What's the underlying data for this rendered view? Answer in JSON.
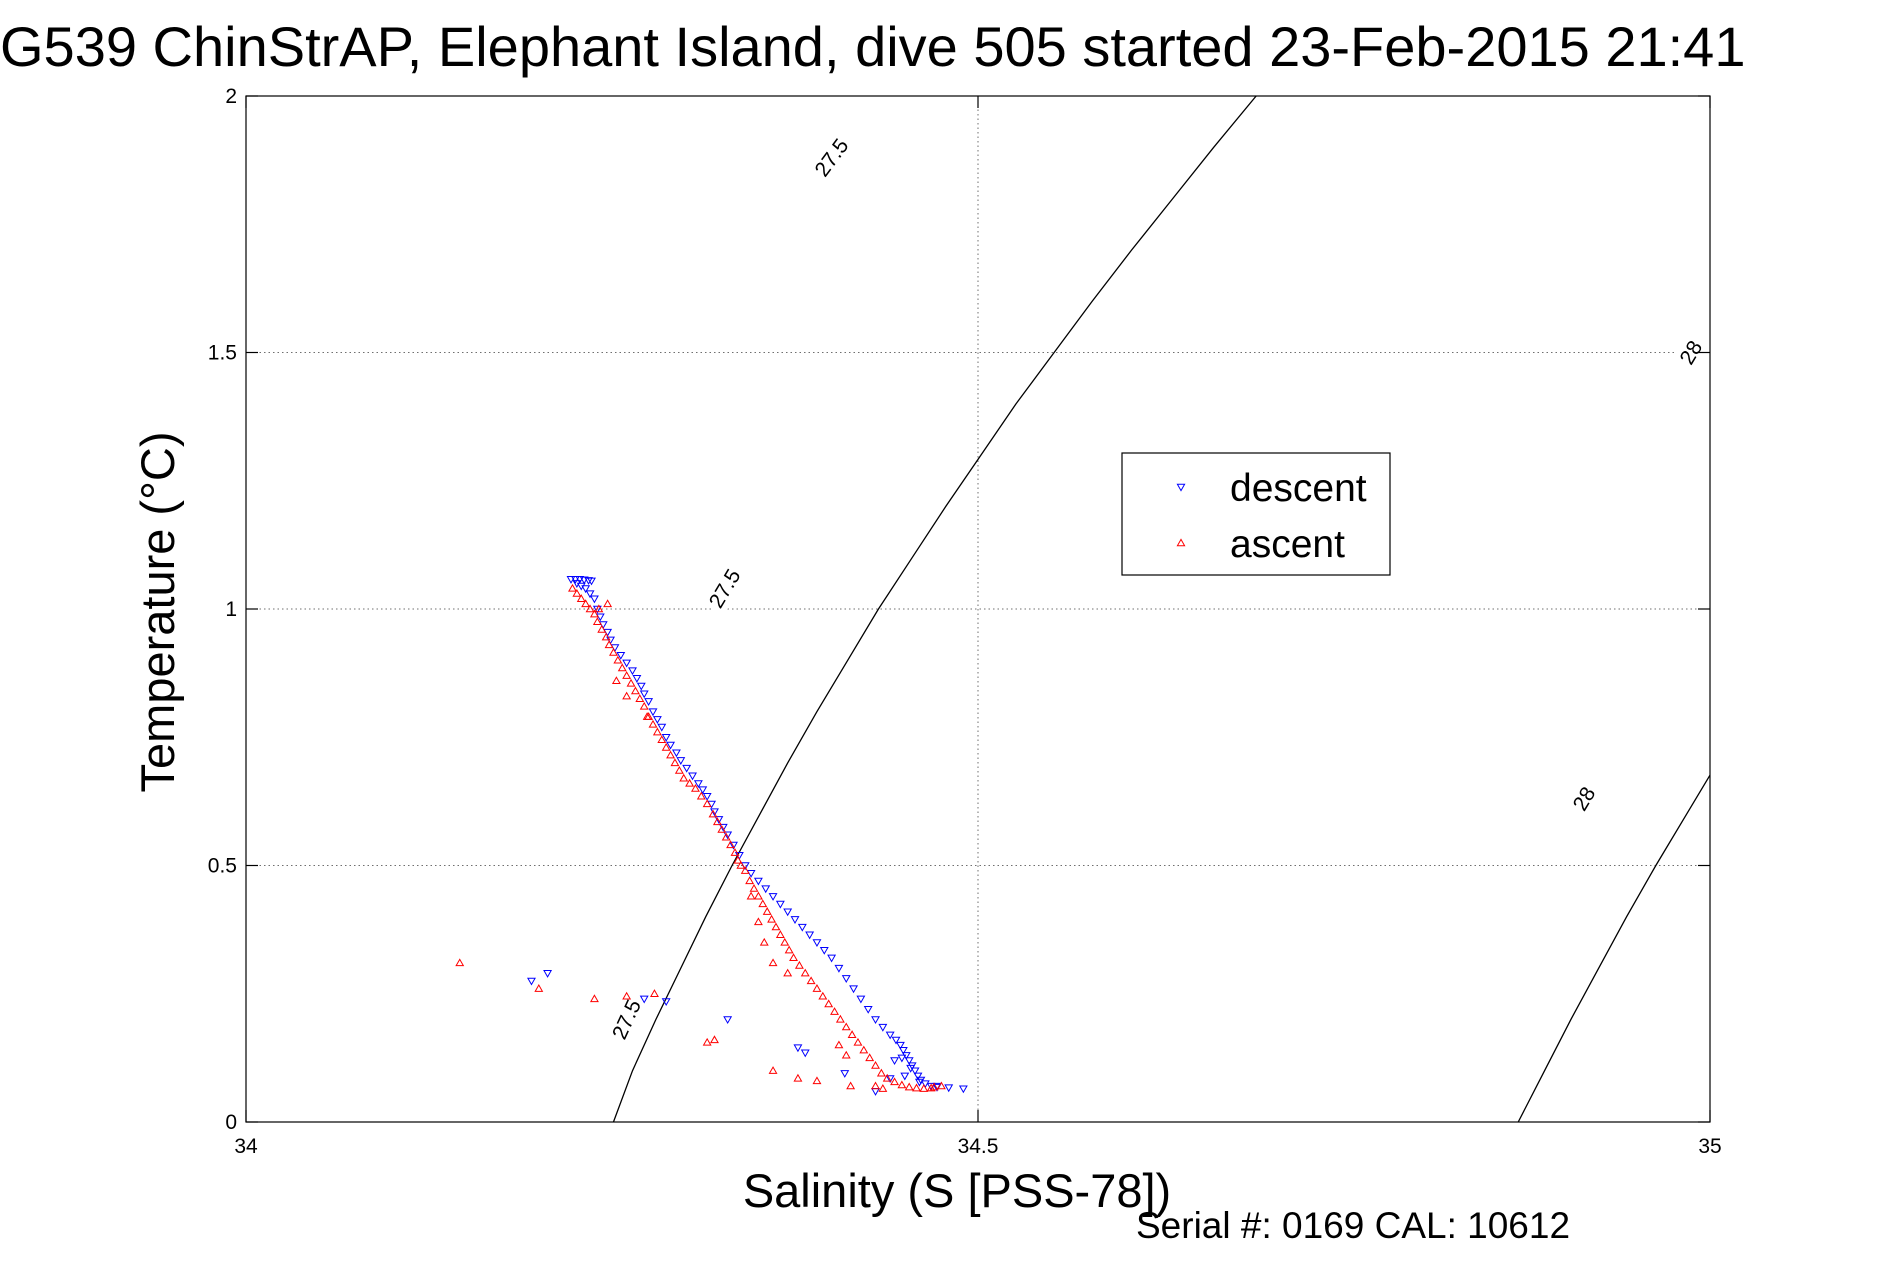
{
  "chart_data": {
    "type": "scatter",
    "title": "G539 ChinStrAP, Elephant Island, dive 505 started 23-Feb-2015 21:41",
    "xlabel": "Salinity (S [PSS-78])",
    "ylabel": "Temperature (°C)",
    "xlim": [
      34,
      35
    ],
    "ylim": [
      0,
      2
    ],
    "xticks": [
      34,
      34.5,
      35
    ],
    "xtick_labels": [
      "34",
      "34.5",
      "35"
    ],
    "yticks": [
      0,
      0.5,
      1,
      1.5,
      2
    ],
    "ytick_labels": [
      "0",
      "0.5",
      "1",
      "1.5",
      "2"
    ],
    "grid": true,
    "legend_placement": "center-right",
    "annotation": "Serial #: 0169 CAL: 10612",
    "density_contours": [
      {
        "label": "27.5",
        "points": [
          [
            34.251,
            0
          ],
          [
            34.264,
            0.1
          ],
          [
            34.28,
            0.2
          ],
          [
            34.297,
            0.3
          ],
          [
            34.314,
            0.4
          ],
          [
            34.332,
            0.5
          ],
          [
            34.351,
            0.6
          ],
          [
            34.37,
            0.7
          ],
          [
            34.39,
            0.8
          ],
          [
            34.411,
            0.9
          ],
          [
            34.432,
            1.0
          ],
          [
            34.455,
            1.1
          ],
          [
            34.478,
            1.2
          ],
          [
            34.502,
            1.3
          ],
          [
            34.526,
            1.4
          ],
          [
            34.552,
            1.5
          ],
          [
            34.578,
            1.6
          ],
          [
            34.605,
            1.7
          ],
          [
            34.633,
            1.8
          ],
          [
            34.661,
            1.9
          ],
          [
            34.69,
            2.0
          ]
        ],
        "label_positions": [
          [
            34.26,
            0.2
          ],
          [
            34.327,
            1.04
          ],
          [
            34.4,
            1.88
          ]
        ]
      },
      {
        "label": "28",
        "points": [
          [
            34.869,
            0
          ],
          [
            34.887,
            0.1
          ],
          [
            34.905,
            0.2
          ],
          [
            34.924,
            0.3
          ],
          [
            34.943,
            0.4
          ],
          [
            34.963,
            0.5
          ],
          [
            34.984,
            0.6
          ],
          [
            35.005,
            0.7
          ]
        ],
        "label_positions": [
          [
            34.914,
            0.63
          ],
          [
            34.987,
            1.5
          ]
        ]
      }
    ],
    "series": [
      {
        "name": "descent",
        "color": "#0000ff",
        "marker": "triangle-down",
        "points": [
          [
            34.222,
            1.058
          ],
          [
            34.225,
            1.058
          ],
          [
            34.228,
            1.058
          ],
          [
            34.231,
            1.057
          ],
          [
            34.234,
            1.056
          ],
          [
            34.236,
            1.055
          ],
          [
            34.226,
            1.05
          ],
          [
            34.229,
            1.045
          ],
          [
            34.232,
            1.04
          ],
          [
            34.235,
            1.03
          ],
          [
            34.238,
            1.02
          ],
          [
            34.24,
            1.0
          ],
          [
            34.242,
            0.985
          ],
          [
            34.244,
            0.97
          ],
          [
            34.247,
            0.955
          ],
          [
            34.249,
            0.94
          ],
          [
            34.252,
            0.925
          ],
          [
            34.256,
            0.91
          ],
          [
            34.26,
            0.895
          ],
          [
            34.264,
            0.88
          ],
          [
            34.267,
            0.865
          ],
          [
            34.27,
            0.85
          ],
          [
            34.272,
            0.835
          ],
          [
            34.275,
            0.82
          ],
          [
            34.278,
            0.8
          ],
          [
            34.281,
            0.785
          ],
          [
            34.284,
            0.77
          ],
          [
            34.287,
            0.75
          ],
          [
            34.29,
            0.735
          ],
          [
            34.294,
            0.72
          ],
          [
            34.297,
            0.705
          ],
          [
            34.301,
            0.69
          ],
          [
            34.305,
            0.675
          ],
          [
            34.309,
            0.66
          ],
          [
            34.312,
            0.648
          ],
          [
            34.315,
            0.635
          ],
          [
            34.318,
            0.62
          ],
          [
            34.32,
            0.605
          ],
          [
            34.323,
            0.59
          ],
          [
            34.326,
            0.575
          ],
          [
            34.329,
            0.56
          ],
          [
            34.333,
            0.54
          ],
          [
            34.337,
            0.52
          ],
          [
            34.341,
            0.5
          ],
          [
            34.345,
            0.485
          ],
          [
            34.35,
            0.47
          ],
          [
            34.355,
            0.455
          ],
          [
            34.36,
            0.44
          ],
          [
            34.365,
            0.425
          ],
          [
            34.37,
            0.41
          ],
          [
            34.375,
            0.395
          ],
          [
            34.38,
            0.38
          ],
          [
            34.385,
            0.365
          ],
          [
            34.39,
            0.35
          ],
          [
            34.395,
            0.335
          ],
          [
            34.4,
            0.32
          ],
          [
            34.405,
            0.3
          ],
          [
            34.41,
            0.28
          ],
          [
            34.415,
            0.26
          ],
          [
            34.42,
            0.24
          ],
          [
            34.425,
            0.22
          ],
          [
            34.43,
            0.2
          ],
          [
            34.435,
            0.185
          ],
          [
            34.44,
            0.17
          ],
          [
            34.444,
            0.16
          ],
          [
            34.447,
            0.15
          ],
          [
            34.449,
            0.14
          ],
          [
            34.451,
            0.13
          ],
          [
            34.453,
            0.12
          ],
          [
            34.455,
            0.11
          ],
          [
            34.457,
            0.1
          ],
          [
            34.459,
            0.09
          ],
          [
            34.461,
            0.082
          ],
          [
            34.464,
            0.075
          ],
          [
            34.468,
            0.07
          ],
          [
            34.472,
            0.068
          ],
          [
            34.44,
            0.085
          ],
          [
            34.45,
            0.09
          ],
          [
            34.46,
            0.078
          ],
          [
            34.443,
            0.12
          ],
          [
            34.448,
            0.125
          ],
          [
            34.454,
            0.105
          ],
          [
            34.49,
            0.065
          ],
          [
            34.472,
            0.07
          ],
          [
            34.377,
            0.145
          ],
          [
            34.329,
            0.2
          ],
          [
            34.287,
            0.235
          ],
          [
            34.272,
            0.24
          ],
          [
            34.206,
            0.29
          ],
          [
            34.195,
            0.275
          ],
          [
            34.409,
            0.095
          ],
          [
            34.43,
            0.06
          ],
          [
            34.48,
            0.067
          ],
          [
            34.382,
            0.135
          ]
        ]
      },
      {
        "name": "ascent",
        "color": "#ff0000",
        "marker": "triangle-up",
        "points": [
          [
            34.223,
            1.04
          ],
          [
            34.226,
            1.03
          ],
          [
            34.229,
            1.02
          ],
          [
            34.232,
            1.01
          ],
          [
            34.235,
            1.0
          ],
          [
            34.238,
            0.99
          ],
          [
            34.24,
            0.975
          ],
          [
            34.243,
            0.96
          ],
          [
            34.246,
            0.945
          ],
          [
            34.248,
            0.93
          ],
          [
            34.251,
            0.915
          ],
          [
            34.254,
            0.9
          ],
          [
            34.257,
            0.885
          ],
          [
            34.26,
            0.87
          ],
          [
            34.263,
            0.855
          ],
          [
            34.266,
            0.84
          ],
          [
            34.269,
            0.825
          ],
          [
            34.272,
            0.81
          ],
          [
            34.275,
            0.79
          ],
          [
            34.278,
            0.775
          ],
          [
            34.281,
            0.76
          ],
          [
            34.284,
            0.745
          ],
          [
            34.287,
            0.73
          ],
          [
            34.29,
            0.715
          ],
          [
            34.293,
            0.7
          ],
          [
            34.296,
            0.685
          ],
          [
            34.299,
            0.67
          ],
          [
            34.303,
            0.66
          ],
          [
            34.307,
            0.65
          ],
          [
            34.311,
            0.635
          ],
          [
            34.315,
            0.62
          ],
          [
            34.319,
            0.6
          ],
          [
            34.322,
            0.585
          ],
          [
            34.325,
            0.57
          ],
          [
            34.328,
            0.555
          ],
          [
            34.331,
            0.54
          ],
          [
            34.334,
            0.525
          ],
          [
            34.336,
            0.51
          ],
          [
            34.338,
            0.5
          ],
          [
            34.341,
            0.49
          ],
          [
            34.344,
            0.47
          ],
          [
            34.347,
            0.455
          ],
          [
            34.35,
            0.44
          ],
          [
            34.353,
            0.425
          ],
          [
            34.356,
            0.41
          ],
          [
            34.359,
            0.395
          ],
          [
            34.362,
            0.38
          ],
          [
            34.365,
            0.365
          ],
          [
            34.368,
            0.35
          ],
          [
            34.371,
            0.335
          ],
          [
            34.374,
            0.32
          ],
          [
            34.378,
            0.305
          ],
          [
            34.382,
            0.29
          ],
          [
            34.386,
            0.275
          ],
          [
            34.39,
            0.26
          ],
          [
            34.394,
            0.245
          ],
          [
            34.398,
            0.23
          ],
          [
            34.402,
            0.215
          ],
          [
            34.406,
            0.2
          ],
          [
            34.41,
            0.185
          ],
          [
            34.414,
            0.17
          ],
          [
            34.418,
            0.155
          ],
          [
            34.422,
            0.14
          ],
          [
            34.426,
            0.125
          ],
          [
            34.43,
            0.11
          ],
          [
            34.434,
            0.095
          ],
          [
            34.438,
            0.085
          ],
          [
            34.443,
            0.078
          ],
          [
            34.448,
            0.072
          ],
          [
            34.453,
            0.068
          ],
          [
            34.458,
            0.066
          ],
          [
            34.463,
            0.065
          ],
          [
            34.468,
            0.066
          ],
          [
            34.47,
            0.068
          ],
          [
            34.475,
            0.07
          ],
          [
            34.43,
            0.07
          ],
          [
            34.435,
            0.065
          ],
          [
            34.413,
            0.07
          ],
          [
            34.405,
            0.15
          ],
          [
            34.41,
            0.13
          ],
          [
            34.377,
            0.085
          ],
          [
            34.39,
            0.08
          ],
          [
            34.36,
            0.1
          ],
          [
            34.26,
            0.245
          ],
          [
            34.279,
            0.25
          ],
          [
            34.238,
            0.24
          ],
          [
            34.2,
            0.26
          ],
          [
            34.146,
            0.31
          ],
          [
            34.32,
            0.16
          ],
          [
            34.315,
            0.155
          ],
          [
            34.247,
            1.01
          ],
          [
            34.241,
            1.0
          ],
          [
            34.253,
            0.86
          ],
          [
            34.274,
            0.79
          ],
          [
            34.26,
            0.83
          ],
          [
            34.345,
            0.44
          ],
          [
            34.35,
            0.39
          ],
          [
            34.354,
            0.35
          ],
          [
            34.36,
            0.31
          ],
          [
            34.37,
            0.29
          ]
        ]
      }
    ]
  }
}
